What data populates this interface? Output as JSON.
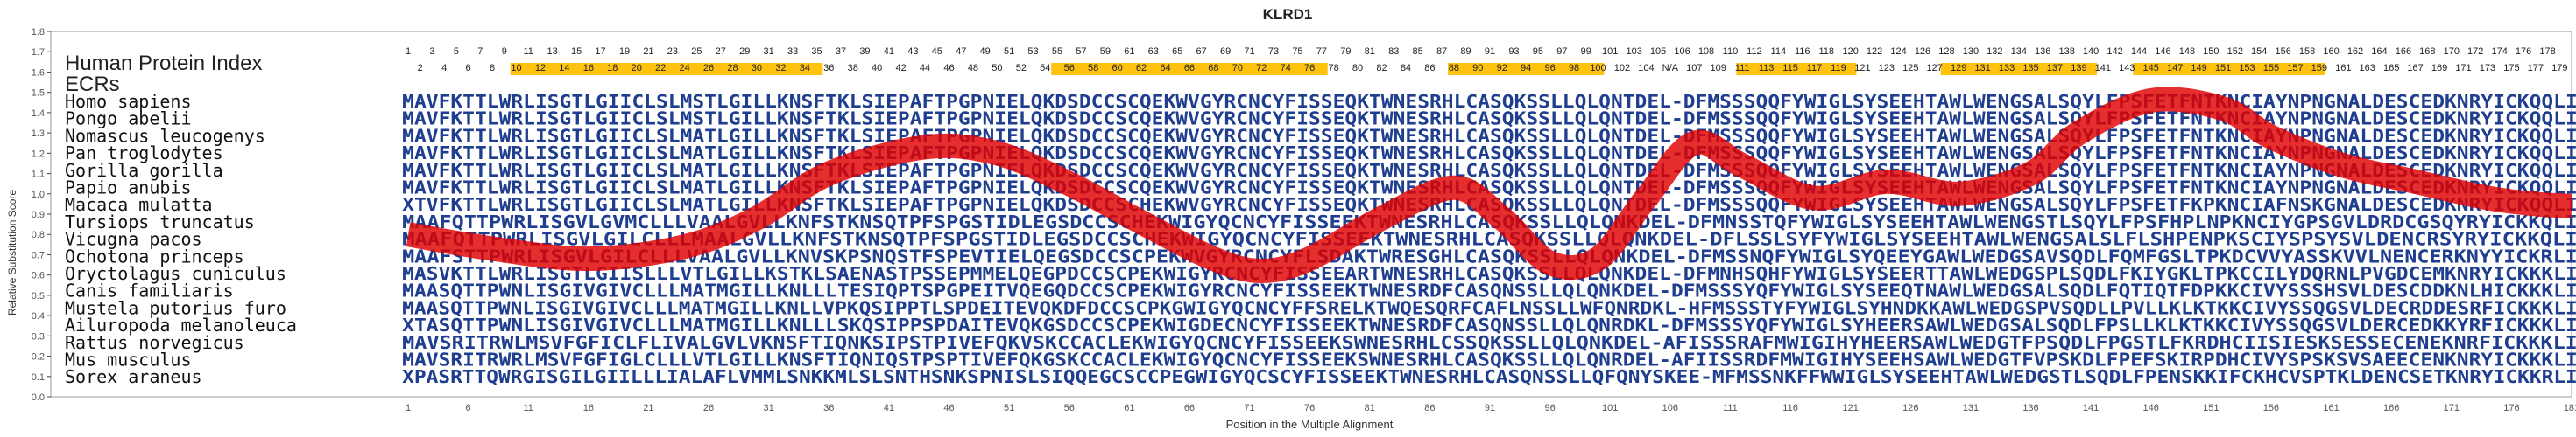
{
  "chart_data": {
    "type": "line",
    "title": "KLRD1",
    "xlabel": "Position in the Multiple Alignment",
    "ylabel": "Relative Substitution Score",
    "ylim": [
      0.0,
      1.8
    ],
    "xlim": [
      1,
      181
    ],
    "y_ticks": [
      "0.0",
      "0.1",
      "0.2",
      "0.3",
      "0.4",
      "0.5",
      "0.6",
      "0.7",
      "0.8",
      "0.9",
      "1.0",
      "1.1",
      "1.2",
      "1.3",
      "1.4",
      "1.5",
      "1.6",
      "1.7",
      "1.8"
    ],
    "x_ticks": [
      "1",
      "6",
      "11",
      "16",
      "21",
      "26",
      "31",
      "36",
      "41",
      "46",
      "51",
      "56",
      "61",
      "66",
      "71",
      "76",
      "81",
      "86",
      "91",
      "96",
      "101",
      "106",
      "111",
      "116",
      "121",
      "126",
      "131",
      "136",
      "141",
      "146",
      "151",
      "156",
      "161",
      "166",
      "171",
      "176",
      "181"
    ],
    "grid": false,
    "row_labels": {
      "human_index": "Human Protein Index",
      "ecrs": "ECRs"
    },
    "human_index_top": [
      "1",
      "3",
      "5",
      "7",
      "9",
      "11",
      "13",
      "15",
      "17",
      "19",
      "21",
      "23",
      "25",
      "27",
      "29",
      "31",
      "33",
      "35",
      "37",
      "39",
      "41",
      "43",
      "45",
      "47",
      "49",
      "51",
      "53",
      "55",
      "57",
      "59",
      "61",
      "63",
      "65",
      "67",
      "69",
      "71",
      "73",
      "75",
      "77",
      "79",
      "81",
      "83",
      "85",
      "87",
      "89",
      "91",
      "93",
      "95",
      "97",
      "99",
      "101",
      "103",
      "105",
      "106",
      "108",
      "110",
      "112",
      "114",
      "116",
      "118",
      "120",
      "122",
      "124",
      "126",
      "128",
      "130",
      "132",
      "134",
      "136",
      "138",
      "140",
      "142",
      "144",
      "146",
      "148",
      "150",
      "152",
      "154",
      "156",
      "158",
      "160",
      "162",
      "164",
      "166",
      "168",
      "170",
      "172",
      "174",
      "176",
      "178"
    ],
    "human_index_bottom": [
      "2",
      "4",
      "6",
      "8",
      "10",
      "12",
      "14",
      "16",
      "18",
      "20",
      "22",
      "24",
      "26",
      "28",
      "30",
      "32",
      "34",
      "36",
      "38",
      "40",
      "42",
      "44",
      "46",
      "48",
      "50",
      "52",
      "54",
      "56",
      "58",
      "60",
      "62",
      "64",
      "66",
      "68",
      "70",
      "72",
      "74",
      "76",
      "78",
      "80",
      "82",
      "84",
      "86",
      "88",
      "90",
      "92",
      "94",
      "96",
      "98",
      "100",
      "102",
      "104",
      "N/A",
      "107",
      "109",
      "111",
      "113",
      "115",
      "117",
      "119",
      "121",
      "123",
      "125",
      "127",
      "129",
      "131",
      "133",
      "135",
      "137",
      "139",
      "141",
      "143",
      "145",
      "147",
      "149",
      "151",
      "153",
      "155",
      "157",
      "159",
      "161",
      "163",
      "165",
      "167",
      "169",
      "171",
      "173",
      "175",
      "177",
      "179"
    ],
    "ecr_regions": [
      [
        10,
        35
      ],
      [
        55,
        77
      ],
      [
        88,
        100
      ],
      [
        112,
        121
      ],
      [
        129,
        141
      ],
      [
        145,
        160
      ]
    ],
    "species": [
      "Homo sapiens",
      "Pongo abelii",
      "Nomascus leucogenys",
      "Pan troglodytes",
      "Gorilla gorilla",
      "Papio anubis",
      "Macaca mulatta",
      "Tursiops truncatus",
      "Vicugna pacos",
      "Ochotona princeps",
      "Oryctolagus cuniculus",
      "Canis familiaris",
      "Mustela putorius furo",
      "Ailuropoda melanoleuca",
      "Rattus norvegicus",
      "Mus musculus",
      "Sorex araneus"
    ],
    "sequences": [
      "MAVFKTTLWRLISGTLGIICLSLMSTLGILLKNSFTKLSIEPAFTPGPNIELQKDSDCCSCQEKWVGYRCNCYFISSEQKTWNESRHLCASQKSSLLQLQNTDEL-DFMSSSQQFYWIGLSYSEEHTAWLWENGSALSQYLFPSFETFNTKNCIAYNPNGNALDESCEDKNRYICKQQLI",
      "MAVFKTTLWRLISGTLGIICLSLMSTLGILLKNSFTKLSIEPAFTPGPNIELQKDSDCCSCQEKWVGYRCNCYFISSEQKTWNESRHLCASQKSSLLQLQNTDEL-DFMSSSQQFYWIGLSYSEEHTAWLWENGSALSQYLFPSFETFNTKNCIAYNPNGNALDESCEDKNRYICKQQLI",
      "MAVFKTTLWRLISGTLGIICLSLMATLGILLKNSFTKLSIEPAFTPGPNIELQKDSDCCSCQEKWVGYRCNCYFISSEQKTWNESRHLCASQKSSLLQLQNTDEL-DFMSSSQQFYWIGLSYSEEHTAWLWENGSALSQYLFPSFETFNTKNCIAYNPNGNALDESCEDKNRYICKQQLI",
      "MAVFKTTLWRLISGTLGIICLSLMATLGILLKNSFTKLSIEPAFTPGPNIELQKDSDCCSCQEKWVGYRCNCYFISSEQKTWNESRHLCASQKSSLLQLQNTDEL-DFMSSSQQFYWIGLSYSEEHTAWLWENGSALSQYLFPSFETFNTKNCIAYNPNGNALDESCEDKNRYICKQQLI",
      "MAVFKTTLWRLISGTLGIICLSLMATLGILLKNSFTKLSIEPAFTPGPNIELQKDSDCCSCQEKWVGYRCNCYFISSEQKTWNESRHLCASQKSSLLQLQNTDEL-DFMSSSQQFYWIGLSYSEEHTAWLWENGSALSQYLFPSFETFNTKNCIAYNPNGNALDESCEDKNRYICKQQLI",
      "MAVFKTTLWRLISGTLGIICLSLMATLGILLKNSFTKLSIEPAFTPGPNIELQKDSDCCSCQEKWVGYRCNCYFISSEQKTWNESRHLCASQKSSLLQLQNTDEL-DFMSSSQQFYWIGLSYSEEHTAWLWENGSALSQYLFPSFETFNTKNCIAYNPNGNALDESCEDKNRYICKQQLI",
      "XTVFKTTLWRLISGTLGIICLSLMATLGILLKNSFTKLSIEPAFTPGPNIELQKDSDCCSCHEKWVGYRCNCYFISSEQKTWNESRHLCASQKSSLLQLQNTDEL-DFMSSSQQFYWIGLSYSEEHTAWLWENGSALSQYLFPSFETFKPKNCIAFNSKGNALDESCEDKNRYICKQQLI",
      "MAAFQTTPWRLISGVLGVMCLLLVAALGVLLKNFSTKNSQTPFSPGSTIDLEGSDCCSCHEKWIGYQCNCYFISSEEKTWNESRHLCASQKSSLLQLQNKDEL-DFMNSSTQFYWIGLSYSEEHTAWLWENGSTLSQYLFPSFHPLNPKNCIYGPSGVLDRDCGSQYRYICKKQLI",
      "MAAFQTTPWRLISGVLGILCLLLMAALGVLLKNFSTKNSQTPFSPGSTIDLEGSDCCSCHEKWIGYQCNCYFISSEEKTWNESRHLCASQKSSLLQLQNKDEL-DFLSSLSYFYWIGLSYSEEHTAWLWENGSALSLFLSHPENPKSCIYSPSYSVLDENCRSYRYICKKQLI",
      "MAAFSTTPWRLISGVLGILCLLLVAALGVLLKNVSKPSNQSTFSPEVTIELQEGSDCCSCPEKWVGYRCNCYFLSDAKTWRESGHLCASQKSSLLQLQNKDEL-DFMSSNQFYWIGLSYQEEYGAWLWEDGSAVSQDLFQMFGSLTPKDCVVYASSKVVLNENCERKNYYICKRLI",
      "MASVKTTLWRLISGTLGIISLLLVTLGILLKSTKLSAENASTPSSEPMMELQEGPDCCSCPEKWIGYRCNCYFISSEEARTWNESRHLCASQKSSLLQLQNKDEL-DFMNHSQHFYWIGLSYSEERTTAWLWEDGSPLSQDLFKIYGKLTPKCCILYDQRNLPVGDCEMKNRYICKKKLI",
      "MAASQTTPWNLISGIVGIVCLLLMATMGILLKNLLLTESIQPTSPGPEITVQEGQDCCSCPEKWIGYRCNCYFISSEEKTWNESRDFCASQNSSLLQLQNKDEL-DFMSSSYQFYWIGLSYSEEQTNAWLWEDGSALSQDLFQTIQTFDPKKCIVYSSSHSVLDESCDDKNLHICKKKLI",
      "MAASQTTPWNLISGIVGIVCLLLMATMGILLKNLLVPKQSIPPTLSPDEITEVQKDFDCCSCPKGWIGYQCNCYFFSRELKTWQESQRFCAFLNSSLLWFQNRDKL-HFMSSSTYFYWIGLSYHNDKKAWLWEDGSPVSQDLLPVLLKLKTKKCIVYSSQGSVLDECRDDESRFICKKKLI",
      "XTASQTTPWNLISGIVGIVCLLLMATMGILLKNLLLSKQSIPPSPDAITEVQKGSDCCSCPEKWIGDECNCYFISSEEKTWNESRDFCASQNSSLLQLQNRDKL-DFMSSSYQFYWIGLSYHEERSAWLWEDGSALSQDLFPSLLKLKTKKCIVYSSQGSVLDERCEDKKYRFICKKKLI",
      "MAVSRITRWLMSVFGFICLFLIVALGVLVKNSFTIQNKSIPSTPIVEFQKVSKCCACLEKWIGYQCNCYFISSEEKSWNESRHLCSSQKSSLLQLQNKDEL-AFISSSRAFMWIGIHYHEERSAWLWEDGTFPSQDLFPGSTLFKRDHCIISIESKSESSECENEKNRFICKKKLI",
      "MAVSRITRWRLMSVFGFIGLCLLLVTLGILLKNSFTIQNIQSTPSPTIVEFQKGSKCCACLEKWIGYQCNCYFISSEEKSWNESRHLCASQKSSLLQLQNRDEL-AFIISSRDFMWIGIHYSEEHSAWLWEDGTFVPSKDLFPEFSKIRPDHCIVYSPSKSVSAEECENKNRYICKKKLI",
      "XPASRTTQWRGISGILGIILLLIALAFLVMMLSNKKMLSLSNTHSNKSPNISLSIQQEGCSCCPEGWIGYQCSCYFISSEEKTWNESRHLCASQNSSLLQFQNYSKEE-MFMSSNKFFWWIGLSYSEEHTAWLWEDGSTLSQDLFPENSKKIFCKHCVSPTKLDENCSETKNRYICKKRLI"
    ],
    "series": [
      {
        "x": [
          1,
          8,
          16,
          24,
          30,
          36,
          44,
          50,
          56,
          62,
          68,
          72,
          76,
          82,
          88,
          92,
          96,
          100,
          104,
          108,
          112,
          118,
          124,
          130,
          136,
          140,
          146,
          152,
          156,
          162,
          168,
          174,
          178,
          181
        ],
        "y": [
          0.8,
          0.73,
          0.68,
          0.74,
          0.88,
          1.1,
          1.23,
          1.2,
          1.05,
          0.86,
          0.68,
          0.62,
          0.68,
          0.88,
          1.03,
          0.88,
          0.66,
          0.68,
          0.98,
          1.25,
          1.14,
          0.98,
          1.06,
          1.0,
          1.1,
          1.3,
          1.46,
          1.42,
          1.28,
          1.14,
          1.06,
          0.98,
          0.95,
          0.94
        ]
      }
    ]
  },
  "colors": {
    "curve": "#e00000",
    "sequence": "#1f3e8f",
    "ecr": "#ffc20e",
    "axis": "#444444",
    "frame": "#9a9a9a"
  }
}
